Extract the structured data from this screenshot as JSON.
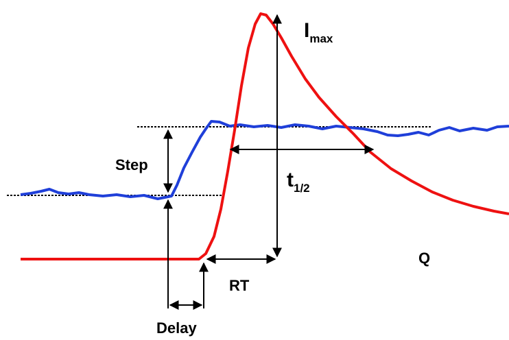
{
  "labels": {
    "step": "Step",
    "delay": "Delay",
    "rt": "RT",
    "t_half": {
      "main": "t",
      "sub": "1/2"
    },
    "i_max": {
      "main": "I",
      "sub": "max"
    },
    "q": "Q"
  }
}
